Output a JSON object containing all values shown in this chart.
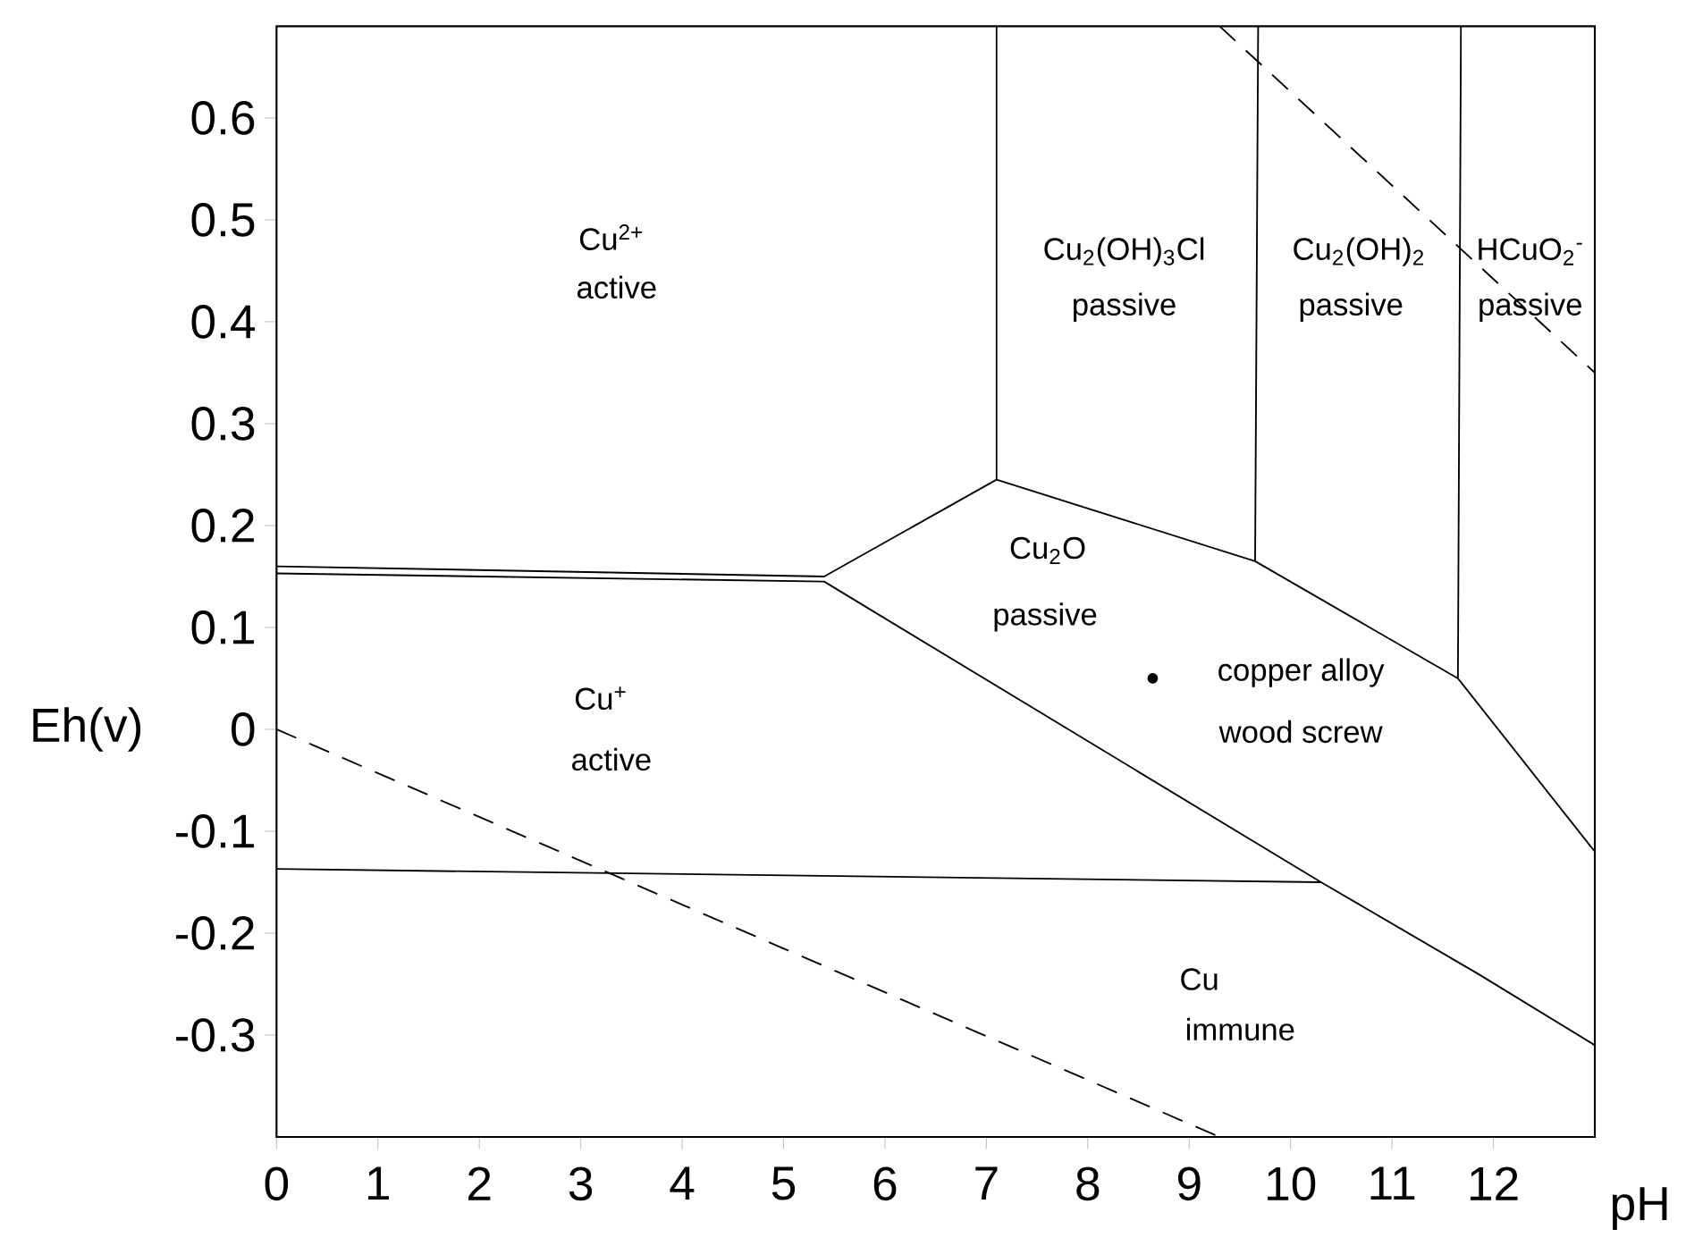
{
  "chart_data": {
    "type": "line",
    "xlabel": "pH",
    "ylabel": "Eh(v)",
    "xlim": [
      0,
      13
    ],
    "ylim": [
      -0.4,
      0.69
    ],
    "xticks": [
      0,
      1,
      2,
      3,
      4,
      5,
      6,
      7,
      8,
      9,
      10,
      11,
      12
    ],
    "yticks": [
      -0.3,
      -0.2,
      -0.1,
      0,
      0.1,
      0.2,
      0.3,
      0.4,
      0.5,
      0.6
    ],
    "grid": false,
    "series": [
      {
        "color": "#000000",
        "line_style": "solid",
        "x": [
          0,
          5.4,
          7.1,
          9.65,
          11.65,
          13
        ],
        "values": [
          0.16,
          0.15,
          0.245,
          0.165,
          0.05,
          -0.12
        ]
      },
      {
        "color": "#000000",
        "line_style": "solid",
        "x": [
          0,
          5.4,
          10.3,
          11.85,
          13
        ],
        "values": [
          0.153,
          0.145,
          -0.15,
          -0.24,
          -0.31
        ]
      },
      {
        "color": "#000000",
        "line_style": "solid",
        "x": [
          0,
          10.3
        ],
        "values": [
          -0.137,
          -0.15
        ]
      },
      {
        "color": "#000000",
        "line_style": "solid",
        "x": [
          7.1,
          7.1
        ],
        "values": [
          0.245,
          0.69
        ]
      },
      {
        "color": "#000000",
        "line_style": "solid",
        "x": [
          9.65,
          9.68
        ],
        "values": [
          0.165,
          0.69
        ]
      },
      {
        "color": "#000000",
        "line_style": "solid",
        "x": [
          11.65,
          11.68
        ],
        "values": [
          0.05,
          0.69
        ]
      },
      {
        "color": "#000000",
        "line_style": "dashed",
        "x": [
          0,
          9.3
        ],
        "values": [
          0,
          -0.4
        ]
      },
      {
        "color": "#000000",
        "line_style": "dashed",
        "x": [
          9.3,
          13
        ],
        "values": [
          0.69,
          0.35
        ]
      },
      {
        "type": "scatter",
        "marker": "circle",
        "color": "#000000",
        "x": [
          8.64
        ],
        "values": [
          0.05
        ]
      }
    ],
    "annotations": [
      "Cu$^{2+}$",
      "active",
      "Cu$^{+}$",
      "active",
      "Cu$_{2}$(OH)$_{3}$Cl",
      "passive",
      "Cu$_{2}$(OH)$_{2}$",
      "passive",
      "HCuO$_{2}$$^{-}$",
      "passive",
      "Cu$_{2}$O",
      "passive",
      "copper alloy",
      "wood screw",
      "Cu",
      "immune"
    ]
  }
}
